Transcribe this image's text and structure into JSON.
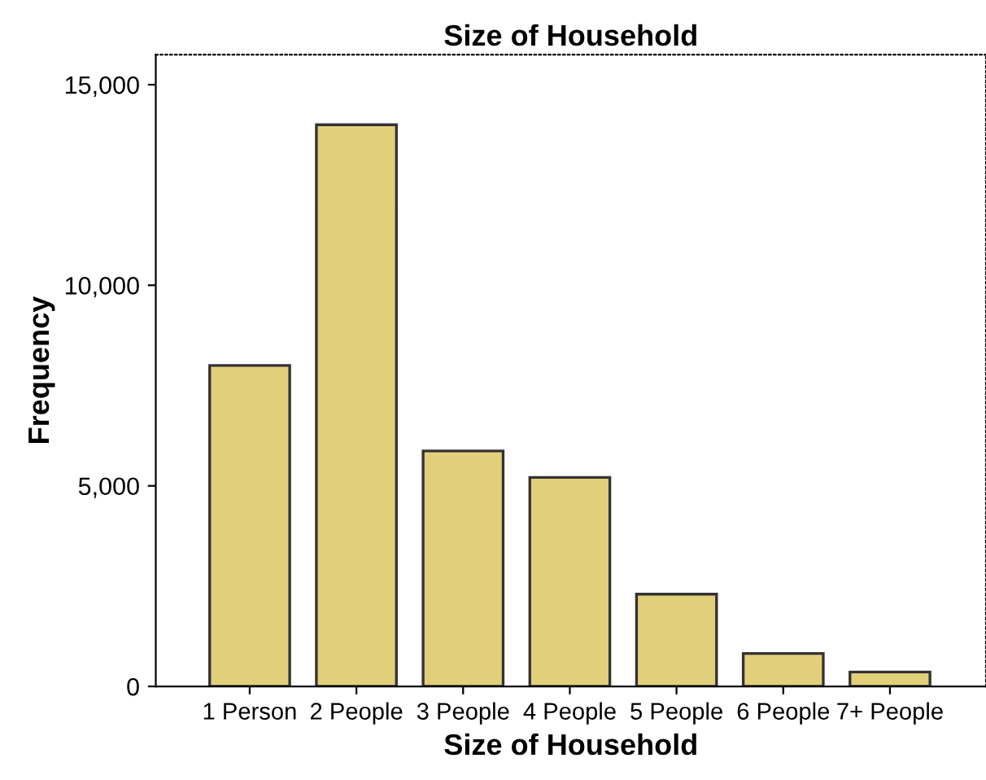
{
  "chart_data": {
    "type": "bar",
    "title": "Size of Household",
    "xlabel": "Size of Household",
    "ylabel": "Frequency",
    "categories": [
      "1 Person",
      "2 People",
      "3 People",
      "4 People",
      "5 People",
      "6 People",
      "7+ People"
    ],
    "values": [
      8000,
      14000,
      5870,
      5210,
      2300,
      820,
      360
    ],
    "color": "#e2cf7a",
    "ylim": [
      0,
      15750
    ],
    "yticks": [
      {
        "value": 0,
        "label": "0"
      },
      {
        "value": 5000,
        "label": "5,000"
      },
      {
        "value": 10000,
        "label": "10,000"
      },
      {
        "value": 15000,
        "label": "15,000"
      }
    ],
    "grid": false
  }
}
